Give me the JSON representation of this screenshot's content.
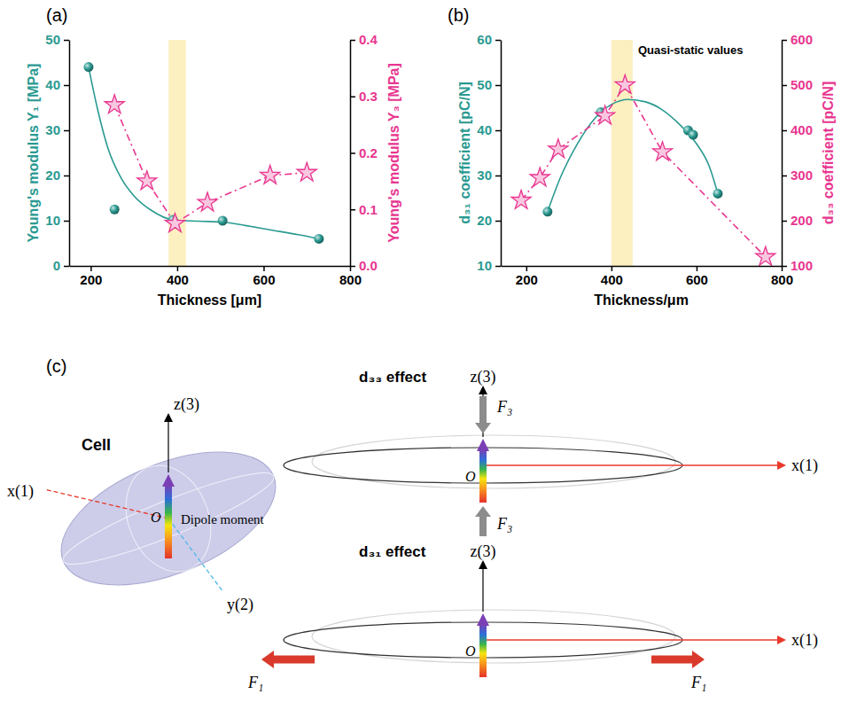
{
  "chart_data": [
    {
      "type": "scatter",
      "panel": "(a)",
      "xlabel": "Thickness [μm]",
      "ylabel": "Young's modulus Y₁ [MPa]",
      "y2label": "Young's modulus Y₃ [MPa]",
      "xlim": [
        150,
        800
      ],
      "xticks": [
        200,
        400,
        600,
        800
      ],
      "ylim": [
        0,
        50
      ],
      "yticks": [
        0,
        10,
        20,
        30,
        40,
        50
      ],
      "y2lim": [
        0,
        0.4
      ],
      "y2ticks": [
        {
          "value": 0,
          "label": "0.0"
        },
        0.1,
        0.2,
        0.3,
        0.4
      ],
      "grid": false,
      "band": [
        380,
        420
      ],
      "series": [
        {
          "type": "scatter",
          "color": "#2a9a91",
          "marker": "circle",
          "line_style": "none",
          "x": [
            195,
            255,
            390,
            505,
            728
          ],
          "values": [
            44,
            12.5,
            10.2,
            10,
            6
          ]
        },
        {
          "type": "line",
          "color": "#2a9a91",
          "marker": "none",
          "line_style": "solid",
          "x": [
            195,
            215,
            240,
            270,
            300,
            340,
            390,
            450,
            505,
            560,
            620,
            680,
            728
          ],
          "values": [
            44,
            35,
            26,
            19.5,
            15.5,
            12.3,
            10.2,
            9.9,
            9.7,
            8.9,
            7.9,
            6.9,
            6
          ]
        },
        {
          "type": "line",
          "axis": "y2",
          "color": "#e8368f",
          "marker": "star",
          "line_style": "dashdot",
          "x": [
            255,
            330,
            395,
            470,
            615,
            700
          ],
          "values": [
            0.285,
            0.15,
            0.075,
            0.112,
            0.16,
            0.165
          ]
        }
      ]
    },
    {
      "type": "scatter",
      "panel": "(b)",
      "annotation": "Quasi-static values",
      "xlabel": "Thickness/μm",
      "ylabel": "d₃₁ coefficient [pC/N]",
      "y2label": "d₃₃ coefficient [pC/N]",
      "xlim": [
        140,
        800
      ],
      "xticks": [
        200,
        400,
        600,
        800
      ],
      "ylim": [
        10,
        60
      ],
      "yticks": [
        10,
        20,
        30,
        40,
        50,
        60
      ],
      "y2lim": [
        100,
        600
      ],
      "y2ticks": [
        100,
        200,
        300,
        400,
        500,
        600
      ],
      "grid": false,
      "band": [
        400,
        450
      ],
      "series": [
        {
          "type": "scatter",
          "color": "#2a9a91",
          "marker": "circle",
          "line_style": "none",
          "x": [
            250,
            375,
            580,
            592,
            650
          ],
          "values": [
            22,
            44,
            40,
            39,
            26
          ]
        },
        {
          "type": "line",
          "color": "#2a9a91",
          "marker": "none",
          "line_style": "solid",
          "x": [
            250,
            280,
            320,
            360,
            400,
            440,
            480,
            520,
            560,
            600,
            630,
            650
          ],
          "values": [
            22,
            29.5,
            37,
            42.5,
            45.7,
            46.8,
            46.3,
            44.5,
            41.3,
            37,
            32,
            26
          ]
        },
        {
          "type": "line",
          "axis": "y2",
          "color": "#e8368f",
          "marker": "star",
          "line_style": "dashdot",
          "x": [
            188,
            232,
            275,
            385,
            432,
            520,
            762
          ],
          "values": [
            245,
            295,
            358,
            432,
            500,
            352,
            120
          ]
        }
      ]
    }
  ],
  "diagram": {
    "label": "(c)",
    "cell": {
      "title": "Cell",
      "z_axis": "z(3)",
      "x_axis": "x(1)",
      "y_axis": "y(2)",
      "origin": "O",
      "dipole": "Dipole moment"
    },
    "d33": {
      "title": "d₃₃ effect",
      "z_axis": "z(3)",
      "x_axis": "x(1)",
      "origin": "O",
      "forces": [
        "F₃",
        "F₃"
      ]
    },
    "d31": {
      "title": "d₃₁ effect",
      "z_axis": "z(3)",
      "x_axis": "x(1)",
      "origin": "O",
      "forces": [
        "F₁",
        "F₁"
      ]
    }
  }
}
